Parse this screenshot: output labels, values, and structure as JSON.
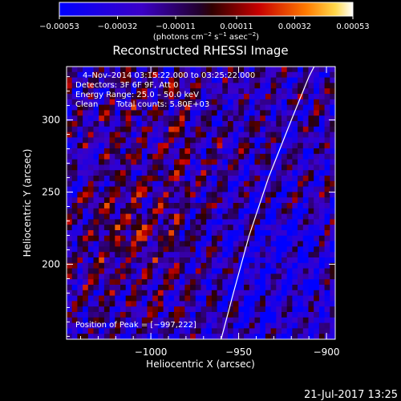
{
  "chart_data": {
    "type": "heatmap",
    "title": "Reconstructed RHESSI Image",
    "xlabel": "Heliocentric X (arcsec)",
    "ylabel": "Heliocentric Y (arcsec)",
    "xlim": [
      -1048,
      -895
    ],
    "ylim": [
      148,
      337
    ],
    "x_ticks": [
      {
        "value": -1000,
        "label": "−1000"
      },
      {
        "value": -950,
        "label": "−950"
      },
      {
        "value": -900,
        "label": "−900"
      }
    ],
    "y_ticks": [
      {
        "value": 200,
        "label": "200"
      },
      {
        "value": 250,
        "label": "250"
      },
      {
        "value": 300,
        "label": "300"
      }
    ],
    "colorbar": {
      "min": -0.00053,
      "max": 0.00053,
      "tick_values": [
        -0.00053,
        -0.00032,
        -0.00011,
        0.00011,
        0.00032,
        0.00053
      ],
      "tick_labels": [
        "−0.00053",
        "−0.00032",
        "−0.00011",
        "0.00011",
        "0.00032",
        "0.00053"
      ],
      "units_prefix": "(photons cm",
      "units_sup1": "−2",
      "units_mid1": " s",
      "units_sup2": "−1",
      "units_mid2": " asec",
      "units_sup3": "−2",
      "units_suffix": ")"
    },
    "annotations": {
      "time": "4–Nov–2014 03:15:22.000 to 03:25:22.000",
      "detectors": "Detectors: 3F 6F 9F, Att 0",
      "energy": "Energy Range: 25.0 – 50.0 keV",
      "clean_label": "Clean",
      "counts": "Total counts: 5.80E+03",
      "peak": "Position of Peak = [−997,222]"
    },
    "limb_curve": [
      [
        -960,
        148
      ],
      [
        -953,
        180
      ],
      [
        -944,
        220
      ],
      [
        -933,
        260
      ],
      [
        -920,
        300
      ],
      [
        -910,
        330
      ],
      [
        -907,
        337
      ]
    ],
    "grid": false,
    "legend": "none"
  },
  "footer": {
    "timestamp": "21-Jul-2017 13:25"
  }
}
